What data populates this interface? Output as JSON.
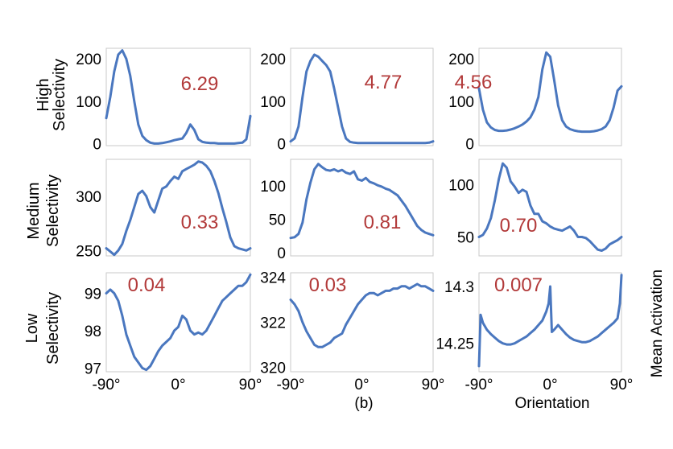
{
  "figure": {
    "panel_label": "(b)",
    "xlabel": "Orientation",
    "ylabel": "Mean Activation",
    "row_labels": [
      [
        "High",
        "Selectivity"
      ],
      [
        "Medium",
        "Selectivity"
      ],
      [
        "Low",
        "Selectivity"
      ]
    ],
    "line_color": "#4a77bf",
    "annotation_color": "#b23a3a"
  },
  "chart_data": [
    {
      "type": "line",
      "row": 0,
      "col": 0,
      "annotation": "6.29",
      "xlim": [
        -90,
        90
      ],
      "ylim": [
        -5,
        225
      ],
      "yticks": [
        0,
        100,
        200
      ],
      "ytick_labels": [
        "0",
        "100",
        "200"
      ],
      "xticks": [],
      "xtick_labels": [],
      "x": [
        -90,
        -85,
        -80,
        -75,
        -70,
        -65,
        -60,
        -55,
        -50,
        -45,
        -40,
        -35,
        -30,
        -25,
        -20,
        -15,
        -10,
        -5,
        0,
        5,
        10,
        15,
        20,
        25,
        30,
        35,
        40,
        45,
        50,
        55,
        60,
        65,
        70,
        75,
        80,
        85,
        90
      ],
      "y": [
        60,
        110,
        170,
        210,
        220,
        200,
        160,
        100,
        45,
        18,
        8,
        2,
        0,
        0,
        1,
        3,
        5,
        8,
        10,
        12,
        25,
        45,
        32,
        10,
        4,
        2,
        1,
        1,
        0,
        0,
        0,
        0,
        0,
        1,
        2,
        10,
        65
      ]
    },
    {
      "type": "line",
      "row": 0,
      "col": 1,
      "annotation": "4.77",
      "xlim": [
        -90,
        90
      ],
      "ylim": [
        -5,
        225
      ],
      "yticks": [
        0,
        100,
        200
      ],
      "ytick_labels": [
        "0",
        "100",
        "200"
      ],
      "xticks": [],
      "xtick_labels": [],
      "x": [
        -90,
        -85,
        -80,
        -75,
        -70,
        -65,
        -60,
        -55,
        -50,
        -45,
        -40,
        -35,
        -30,
        -25,
        -20,
        -15,
        -10,
        -5,
        0,
        5,
        10,
        15,
        20,
        25,
        30,
        35,
        40,
        45,
        50,
        55,
        60,
        65,
        70,
        75,
        80,
        85,
        90
      ],
      "y": [
        5,
        12,
        40,
        110,
        170,
        195,
        210,
        205,
        195,
        185,
        170,
        130,
        85,
        40,
        12,
        4,
        2,
        1,
        1,
        1,
        1,
        1,
        1,
        1,
        1,
        1,
        1,
        1,
        1,
        1,
        1,
        1,
        1,
        1,
        1,
        2,
        5
      ]
    },
    {
      "type": "line",
      "row": 0,
      "col": 2,
      "annotation": "4.56",
      "xlim": [
        -90,
        90
      ],
      "ylim": [
        -5,
        225
      ],
      "yticks": [
        0,
        100,
        200
      ],
      "ytick_labels": [
        "0",
        "100",
        "200"
      ],
      "xticks": [],
      "xtick_labels": [],
      "x": [
        -90,
        -85,
        -80,
        -75,
        -70,
        -65,
        -60,
        -55,
        -50,
        -45,
        -40,
        -35,
        -30,
        -25,
        -20,
        -15,
        -10,
        -5,
        0,
        5,
        10,
        15,
        20,
        25,
        30,
        35,
        40,
        45,
        50,
        55,
        60,
        65,
        70,
        75,
        80,
        85,
        90
      ],
      "y": [
        130,
        80,
        50,
        38,
        32,
        30,
        30,
        31,
        33,
        36,
        40,
        45,
        52,
        62,
        80,
        110,
        175,
        215,
        205,
        150,
        90,
        55,
        40,
        34,
        31,
        29,
        28,
        28,
        28,
        29,
        31,
        34,
        40,
        55,
        85,
        125,
        135
      ]
    },
    {
      "type": "line",
      "row": 1,
      "col": 0,
      "annotation": "0.33",
      "xlim": [
        -90,
        90
      ],
      "ylim": [
        245,
        334
      ],
      "yticks": [
        250,
        300
      ],
      "ytick_labels": [
        "250",
        "300"
      ],
      "xticks": [],
      "xtick_labels": [],
      "x": [
        -90,
        -85,
        -80,
        -75,
        -70,
        -65,
        -60,
        -55,
        -50,
        -45,
        -40,
        -35,
        -30,
        -25,
        -20,
        -15,
        -10,
        -5,
        0,
        5,
        10,
        15,
        20,
        25,
        30,
        35,
        40,
        45,
        50,
        55,
        60,
        65,
        70,
        75,
        80,
        85,
        90
      ],
      "y": [
        252,
        249,
        246,
        250,
        256,
        268,
        278,
        290,
        302,
        305,
        300,
        290,
        285,
        296,
        307,
        309,
        314,
        318,
        316,
        323,
        325,
        327,
        329,
        332,
        331,
        328,
        323,
        314,
        303,
        289,
        276,
        262,
        254,
        252,
        251,
        250,
        252
      ]
    },
    {
      "type": "line",
      "row": 1,
      "col": 1,
      "annotation": "0.81",
      "xlim": [
        -90,
        90
      ],
      "ylim": [
        -5,
        140
      ],
      "yticks": [
        0,
        50,
        100
      ],
      "ytick_labels": [
        "0",
        "50",
        "100"
      ],
      "xticks": [],
      "xtick_labels": [],
      "x": [
        -90,
        -85,
        -80,
        -75,
        -70,
        -65,
        -60,
        -55,
        -50,
        -45,
        -40,
        -35,
        -30,
        -25,
        -20,
        -15,
        -10,
        -5,
        0,
        5,
        10,
        15,
        20,
        25,
        30,
        35,
        40,
        45,
        50,
        55,
        60,
        65,
        70,
        75,
        80,
        85,
        90
      ],
      "y": [
        22,
        23,
        28,
        45,
        80,
        105,
        125,
        133,
        128,
        124,
        123,
        125,
        122,
        124,
        120,
        118,
        122,
        110,
        108,
        112,
        106,
        104,
        101,
        99,
        96,
        94,
        90,
        86,
        78,
        70,
        60,
        50,
        40,
        34,
        30,
        28,
        26
      ]
    },
    {
      "type": "line",
      "row": 1,
      "col": 2,
      "annotation": "0.70",
      "xlim": [
        -90,
        90
      ],
      "ylim": [
        32,
        124
      ],
      "yticks": [
        50,
        100
      ],
      "ytick_labels": [
        "50",
        "100"
      ],
      "xticks": [],
      "xtick_labels": [],
      "x": [
        -90,
        -85,
        -80,
        -75,
        -70,
        -65,
        -60,
        -55,
        -50,
        -45,
        -40,
        -35,
        -30,
        -25,
        -20,
        -15,
        -10,
        -5,
        0,
        5,
        10,
        15,
        20,
        25,
        30,
        35,
        40,
        45,
        50,
        55,
        60,
        65,
        70,
        75,
        80,
        85,
        90
      ],
      "y": [
        50,
        52,
        58,
        68,
        85,
        105,
        120,
        116,
        103,
        98,
        92,
        95,
        93,
        80,
        72,
        72,
        65,
        63,
        60,
        58,
        57,
        56,
        58,
        60,
        56,
        50,
        50,
        49,
        46,
        42,
        38,
        37,
        39,
        43,
        45,
        47,
        50
      ]
    },
    {
      "type": "line",
      "row": 2,
      "col": 0,
      "annotation": "0.04",
      "xlim": [
        -90,
        90
      ],
      "ylim": [
        96.9,
        99.55
      ],
      "yticks": [
        97,
        98,
        99
      ],
      "ytick_labels": [
        "97",
        "98",
        "99"
      ],
      "xticks": [
        -90,
        0,
        90
      ],
      "xtick_labels": [
        "-90°",
        "0°",
        "90°"
      ],
      "x": [
        -90,
        -85,
        -80,
        -75,
        -70,
        -65,
        -60,
        -55,
        -50,
        -45,
        -40,
        -35,
        -30,
        -25,
        -20,
        -15,
        -10,
        -5,
        0,
        5,
        10,
        15,
        20,
        25,
        30,
        35,
        40,
        45,
        50,
        55,
        60,
        65,
        70,
        75,
        80,
        85,
        90
      ],
      "y": [
        99.0,
        99.1,
        99.0,
        98.8,
        98.4,
        97.9,
        97.6,
        97.3,
        97.15,
        97.0,
        96.95,
        97.05,
        97.25,
        97.45,
        97.6,
        97.7,
        97.8,
        98.0,
        98.1,
        98.4,
        98.3,
        98.0,
        97.9,
        97.95,
        97.9,
        98.0,
        98.2,
        98.4,
        98.6,
        98.8,
        98.9,
        99.0,
        99.1,
        99.2,
        99.2,
        99.3,
        99.5
      ]
    },
    {
      "type": "line",
      "row": 2,
      "col": 1,
      "annotation": "0.03",
      "xlim": [
        -90,
        90
      ],
      "ylim": [
        319.8,
        324.2
      ],
      "yticks": [
        320,
        322,
        324
      ],
      "ytick_labels": [
        "320",
        "322",
        "324"
      ],
      "xticks": [
        -90,
        0,
        90
      ],
      "xtick_labels": [
        "-90°",
        "0°",
        "90°"
      ],
      "x": [
        -90,
        -85,
        -80,
        -75,
        -70,
        -65,
        -60,
        -55,
        -50,
        -45,
        -40,
        -35,
        -30,
        -25,
        -20,
        -15,
        -10,
        -5,
        0,
        5,
        10,
        15,
        20,
        25,
        30,
        35,
        40,
        45,
        50,
        55,
        60,
        65,
        70,
        75,
        80,
        85,
        90
      ],
      "y": [
        323.0,
        322.8,
        322.5,
        322.0,
        321.6,
        321.3,
        321.0,
        320.9,
        320.9,
        321.0,
        321.1,
        321.3,
        321.4,
        321.5,
        321.9,
        322.2,
        322.5,
        322.8,
        323.0,
        323.2,
        323.3,
        323.3,
        323.2,
        323.3,
        323.4,
        323.4,
        323.5,
        323.5,
        323.6,
        323.6,
        323.5,
        323.6,
        323.7,
        323.6,
        323.6,
        323.5,
        323.4
      ]
    },
    {
      "type": "line",
      "row": 2,
      "col": 2,
      "annotation": "0.007",
      "xlim": [
        -90,
        90
      ],
      "ylim": [
        14.225,
        14.312
      ],
      "yticks": [
        14.25,
        14.3
      ],
      "ytick_labels": [
        "14.25",
        "14.3"
      ],
      "xticks": [
        -90,
        0,
        90
      ],
      "xtick_labels": [
        "-90°",
        "0°",
        "90°"
      ],
      "x": [
        -90,
        -88,
        -85,
        -80,
        -75,
        -70,
        -65,
        -60,
        -55,
        -50,
        -45,
        -40,
        -35,
        -30,
        -25,
        -20,
        -15,
        -10,
        -5,
        -2,
        0,
        2,
        5,
        10,
        15,
        20,
        25,
        30,
        35,
        40,
        45,
        50,
        55,
        60,
        65,
        70,
        75,
        80,
        85,
        88,
        90
      ],
      "y": [
        14.23,
        14.275,
        14.268,
        14.262,
        14.258,
        14.255,
        14.252,
        14.25,
        14.249,
        14.249,
        14.25,
        14.252,
        14.254,
        14.256,
        14.259,
        14.262,
        14.266,
        14.27,
        14.278,
        14.285,
        14.3,
        14.26,
        14.262,
        14.266,
        14.262,
        14.258,
        14.255,
        14.253,
        14.252,
        14.251,
        14.251,
        14.252,
        14.254,
        14.256,
        14.259,
        14.262,
        14.265,
        14.268,
        14.272,
        14.285,
        14.31
      ]
    }
  ]
}
